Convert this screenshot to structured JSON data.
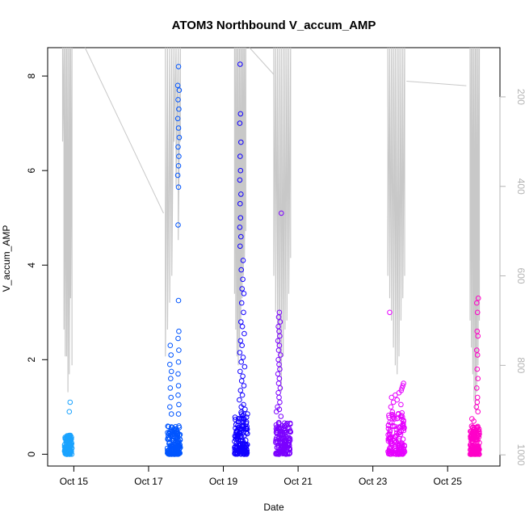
{
  "chart_data": {
    "type": "scatter",
    "title": "ATOM3 Northbound V_accum_AMP",
    "xlabel": "Date",
    "ylabel": "V_accum_AMP",
    "x_tick_labels": [
      "Oct 15",
      "Oct 17",
      "Oct 19",
      "Oct 21",
      "Oct 23",
      "Oct 25"
    ],
    "x_tick_days": [
      15,
      17,
      19,
      21,
      23,
      25
    ],
    "xlim_days": [
      14.3,
      26.4
    ],
    "y_ticks": [
      0,
      2,
      4,
      6,
      8
    ],
    "ylim": [
      -0.25,
      8.6
    ],
    "y2_ticks": [
      200,
      400,
      600,
      800,
      1000
    ],
    "y2lim_reversed": [
      1025,
      90
    ],
    "grid": false,
    "legend": "none",
    "colors": {
      "trace": "#c8c8c8",
      "axis": "#000000",
      "right_axis": "#b4b4b4",
      "groups": [
        "#1aa3ff",
        "#0055ff",
        "#1100ff",
        "#7b00ff",
        "#e600ff",
        "#ff00c8"
      ]
    },
    "groups": [
      {
        "day_start": 14.75,
        "day_end": 14.95,
        "color": "#1aa3ff",
        "dense_max": 0.4,
        "outliers": [
          [
            14.9,
            1.1
          ],
          [
            14.88,
            0.9
          ]
        ]
      },
      {
        "day_start": 17.5,
        "day_end": 17.85,
        "color": "#0055ff",
        "dense_max": 0.6,
        "outliers": [
          [
            17.8,
            8.2
          ],
          [
            17.78,
            7.8
          ],
          [
            17.82,
            7.7
          ],
          [
            17.79,
            7.5
          ],
          [
            17.81,
            7.3
          ],
          [
            17.78,
            7.1
          ],
          [
            17.8,
            6.9
          ],
          [
            17.82,
            6.7
          ],
          [
            17.79,
            6.5
          ],
          [
            17.81,
            6.3
          ],
          [
            17.8,
            6.1
          ],
          [
            17.78,
            5.9
          ],
          [
            17.8,
            5.65
          ],
          [
            17.79,
            4.85
          ],
          [
            17.8,
            3.25
          ],
          [
            17.81,
            2.6
          ],
          [
            17.79,
            2.45
          ],
          [
            17.58,
            2.3
          ],
          [
            17.6,
            2.1
          ],
          [
            17.57,
            1.9
          ],
          [
            17.61,
            1.75
          ],
          [
            17.59,
            1.6
          ],
          [
            17.81,
            2.2
          ],
          [
            17.8,
            1.95
          ],
          [
            17.79,
            1.7
          ],
          [
            17.8,
            1.45
          ],
          [
            17.58,
            1.4
          ],
          [
            17.6,
            1.2
          ],
          [
            17.79,
            1.25
          ],
          [
            17.81,
            1.05
          ],
          [
            17.57,
            1.0
          ],
          [
            17.61,
            0.85
          ],
          [
            17.8,
            0.85
          ]
        ]
      },
      {
        "day_start": 19.3,
        "day_end": 19.65,
        "color": "#1100ff",
        "dense_max": 0.9,
        "outliers": [
          [
            19.45,
            8.25
          ],
          [
            19.46,
            7.2
          ],
          [
            19.44,
            7.0
          ],
          [
            19.47,
            6.6
          ],
          [
            19.45,
            6.3
          ],
          [
            19.46,
            6.0
          ],
          [
            19.44,
            5.8
          ],
          [
            19.47,
            5.5
          ],
          [
            19.45,
            5.3
          ],
          [
            19.46,
            5.0
          ],
          [
            19.44,
            4.8
          ],
          [
            19.47,
            4.6
          ],
          [
            19.45,
            4.4
          ],
          [
            19.53,
            4.1
          ],
          [
            19.48,
            3.9
          ],
          [
            19.52,
            3.7
          ],
          [
            19.5,
            3.5
          ],
          [
            19.55,
            3.4
          ],
          [
            19.49,
            3.2
          ],
          [
            19.54,
            3.0
          ],
          [
            19.47,
            2.8
          ],
          [
            19.51,
            2.7
          ],
          [
            19.56,
            2.55
          ],
          [
            19.46,
            2.4
          ],
          [
            19.5,
            2.3
          ],
          [
            19.44,
            2.15
          ],
          [
            19.53,
            2.05
          ],
          [
            19.48,
            1.95
          ],
          [
            19.57,
            1.85
          ],
          [
            19.45,
            1.75
          ],
          [
            19.52,
            1.65
          ],
          [
            19.49,
            1.55
          ],
          [
            19.55,
            1.45
          ],
          [
            19.46,
            1.35
          ],
          [
            19.51,
            1.25
          ],
          [
            19.43,
            1.15
          ],
          [
            19.54,
            1.05
          ],
          [
            19.48,
            1.0
          ],
          [
            19.58,
            0.95
          ]
        ]
      },
      {
        "day_start": 20.4,
        "day_end": 20.8,
        "color": "#7b00ff",
        "dense_max": 0.7,
        "outliers": [
          [
            20.55,
            5.1
          ],
          [
            20.5,
            3.0
          ],
          [
            20.48,
            2.9
          ],
          [
            20.52,
            2.8
          ],
          [
            20.47,
            2.7
          ],
          [
            20.49,
            2.6
          ],
          [
            20.51,
            2.5
          ],
          [
            20.46,
            2.4
          ],
          [
            20.5,
            2.3
          ],
          [
            20.48,
            2.2
          ],
          [
            20.53,
            2.1
          ],
          [
            20.47,
            2.0
          ],
          [
            20.49,
            1.9
          ],
          [
            20.51,
            1.8
          ],
          [
            20.46,
            1.7
          ],
          [
            20.5,
            1.6
          ],
          [
            20.48,
            1.5
          ],
          [
            20.52,
            1.4
          ],
          [
            20.47,
            1.3
          ],
          [
            20.49,
            1.2
          ],
          [
            20.51,
            1.1
          ],
          [
            20.45,
            1.0
          ],
          [
            20.5,
            0.95
          ],
          [
            20.42,
            0.9
          ],
          [
            20.54,
            0.8
          ]
        ]
      },
      {
        "day_start": 23.4,
        "day_end": 23.85,
        "color": "#e600ff",
        "dense_max": 0.9,
        "outliers": [
          [
            23.45,
            3.0
          ],
          [
            23.82,
            1.5
          ],
          [
            23.8,
            1.45
          ],
          [
            23.78,
            1.4
          ],
          [
            23.76,
            1.35
          ],
          [
            23.7,
            1.3
          ],
          [
            23.6,
            1.25
          ],
          [
            23.5,
            1.2
          ],
          [
            23.65,
            1.15
          ],
          [
            23.55,
            1.1
          ],
          [
            23.75,
            1.05
          ],
          [
            23.48,
            1.0
          ]
        ]
      },
      {
        "day_start": 25.6,
        "day_end": 25.85,
        "color": "#ff00c8",
        "dense_max": 0.6,
        "outliers": [
          [
            25.82,
            3.3
          ],
          [
            25.78,
            3.2
          ],
          [
            25.8,
            3.0
          ],
          [
            25.79,
            2.6
          ],
          [
            25.81,
            2.5
          ],
          [
            25.78,
            2.2
          ],
          [
            25.8,
            2.1
          ],
          [
            25.79,
            1.8
          ],
          [
            25.81,
            1.6
          ],
          [
            25.78,
            1.4
          ],
          [
            25.8,
            1.2
          ],
          [
            25.79,
            1.1
          ],
          [
            25.77,
            1.0
          ],
          [
            25.81,
            0.9
          ],
          [
            25.65,
            0.75
          ],
          [
            25.7,
            0.7
          ]
        ]
      }
    ],
    "secondary_trace": {
      "clusters": [
        {
          "day_start": 14.7,
          "day_end": 14.95,
          "deep": [
            300,
            720,
            780,
            780,
            860,
            820,
            650,
            800
          ]
        },
        {
          "day_start": 17.45,
          "day_end": 17.85,
          "deep": [
            780,
            720,
            660,
            600,
            300,
            400,
            520,
            300
          ]
        },
        {
          "day_start": 19.3,
          "day_end": 19.6,
          "deep": [
            640,
            720,
            780,
            800,
            760,
            700,
            650,
            600,
            560,
            500
          ]
        },
        {
          "day_start": 20.35,
          "day_end": 20.8,
          "deep": [
            600,
            680,
            760,
            820,
            860,
            780,
            720,
            700,
            640,
            560
          ]
        },
        {
          "day_start": 23.4,
          "day_end": 23.85,
          "deep": [
            600,
            650,
            700,
            760,
            800,
            820,
            780,
            700,
            650,
            600
          ]
        },
        {
          "day_start": 25.6,
          "day_end": 25.85,
          "deep": [
            700,
            760,
            820,
            880,
            900,
            860,
            800,
            700
          ]
        }
      ],
      "connectors": [
        [
          [
            15.3,
            90
          ],
          [
            17.4,
            460
          ]
        ],
        [
          [
            19.7,
            90
          ],
          [
            20.35,
            150
          ]
        ],
        [
          [
            23.9,
            165
          ],
          [
            25.5,
            175
          ]
        ]
      ]
    }
  }
}
